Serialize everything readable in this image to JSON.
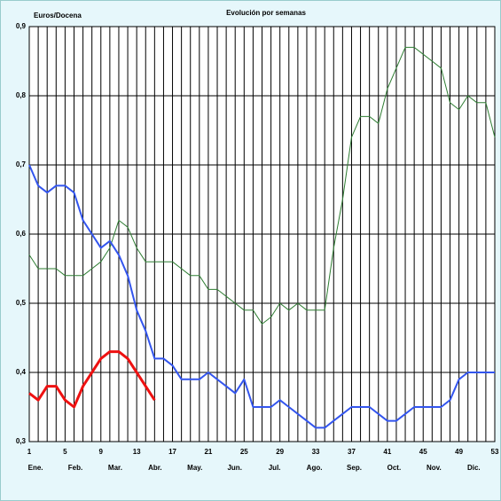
{
  "chart_data": {
    "type": "line",
    "title": "Evolución por semanas",
    "y_label": "Euros/Docena",
    "x": [
      1,
      2,
      3,
      4,
      5,
      6,
      7,
      8,
      9,
      10,
      11,
      12,
      13,
      14,
      15,
      16,
      17,
      18,
      19,
      20,
      21,
      22,
      23,
      24,
      25,
      26,
      27,
      28,
      29,
      30,
      31,
      32,
      33,
      34,
      35,
      36,
      37,
      38,
      39,
      40,
      41,
      42,
      43,
      44,
      45,
      46,
      47,
      48,
      49,
      50,
      51,
      52,
      53
    ],
    "xlim": [
      1,
      53
    ],
    "xticks": [
      1,
      5,
      9,
      13,
      17,
      21,
      25,
      29,
      33,
      37,
      41,
      45,
      49,
      53
    ],
    "months": [
      "Ene.",
      "Feb.",
      "Mar.",
      "Abr.",
      "May.",
      "Jun.",
      "Jul.",
      "Ago.",
      "Sep.",
      "Oct.",
      "Nov.",
      "Dic."
    ],
    "ylim": [
      0.3,
      0.9
    ],
    "yticks": [
      {
        "value": 0.3,
        "label": "0,3"
      },
      {
        "value": 0.4,
        "label": "0,4"
      },
      {
        "value": 0.5,
        "label": "0,5"
      },
      {
        "value": 0.6,
        "label": "0,6"
      },
      {
        "value": 0.7,
        "label": "0,7"
      },
      {
        "value": 0.8,
        "label": "0,8"
      },
      {
        "value": 0.9,
        "label": "0,9"
      }
    ],
    "grid": true,
    "series": [
      {
        "color": "#2e7d32",
        "width": 1,
        "values": [
          0.57,
          0.55,
          0.55,
          0.55,
          0.54,
          0.54,
          0.54,
          0.55,
          0.56,
          0.58,
          0.62,
          0.61,
          0.58,
          0.56,
          0.56,
          0.56,
          0.56,
          0.55,
          0.54,
          0.54,
          0.52,
          0.52,
          0.51,
          0.5,
          0.49,
          0.49,
          0.47,
          0.48,
          0.5,
          0.49,
          0.5,
          0.49,
          0.49,
          0.49,
          0.58,
          0.65,
          0.74,
          0.77,
          0.77,
          0.76,
          0.81,
          0.84,
          0.87,
          0.87,
          0.86,
          0.85,
          0.84,
          0.79,
          0.78,
          0.8,
          0.79,
          0.79,
          0.74
        ]
      },
      {
        "color": "#3355ee",
        "width": 2,
        "values": [
          0.7,
          0.67,
          0.66,
          0.67,
          0.67,
          0.66,
          0.62,
          0.6,
          0.58,
          0.59,
          0.57,
          0.54,
          0.49,
          0.46,
          0.42,
          0.42,
          0.41,
          0.39,
          0.39,
          0.39,
          0.4,
          0.39,
          0.38,
          0.37,
          0.39,
          0.35,
          0.35,
          0.35,
          0.36,
          0.35,
          0.34,
          0.33,
          0.32,
          0.32,
          0.33,
          0.34,
          0.35,
          0.35,
          0.35,
          0.34,
          0.33,
          0.33,
          0.34,
          0.35,
          0.35,
          0.35,
          0.35,
          0.36,
          0.39,
          0.4,
          0.4,
          0.4,
          0.4
        ]
      },
      {
        "color": "#ee1111",
        "width": 3,
        "values": [
          0.37,
          0.36,
          0.38,
          0.38,
          0.36,
          0.35,
          0.38,
          0.4,
          0.42,
          0.43,
          0.43,
          0.42,
          0.4,
          0.38,
          0.36,
          null,
          null,
          null,
          null,
          null,
          null,
          null,
          null,
          null,
          null,
          null,
          null,
          null,
          null,
          null,
          null,
          null,
          null,
          null,
          null,
          null,
          null,
          null,
          null,
          null,
          null,
          null,
          null,
          null,
          null,
          null,
          null,
          null,
          null,
          null,
          null,
          null,
          null
        ]
      }
    ]
  }
}
